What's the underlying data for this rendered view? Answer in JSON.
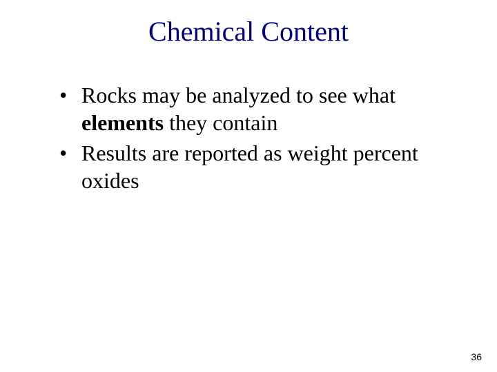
{
  "title": {
    "text": "Chemical Content",
    "color": "#000080",
    "fontsize": 40
  },
  "bullets": [
    {
      "pre": "Rocks may be analyzed to see what ",
      "bold": "elements",
      "post": " they contain"
    },
    {
      "pre": "Results are reported as weight percent oxides",
      "bold": "",
      "post": ""
    }
  ],
  "page_number": "36",
  "colors": {
    "background": "#ffffff",
    "title": "#000080",
    "body": "#000000"
  },
  "fonts": {
    "title_size": 40,
    "body_size": 32,
    "pagenum_size": 14
  }
}
